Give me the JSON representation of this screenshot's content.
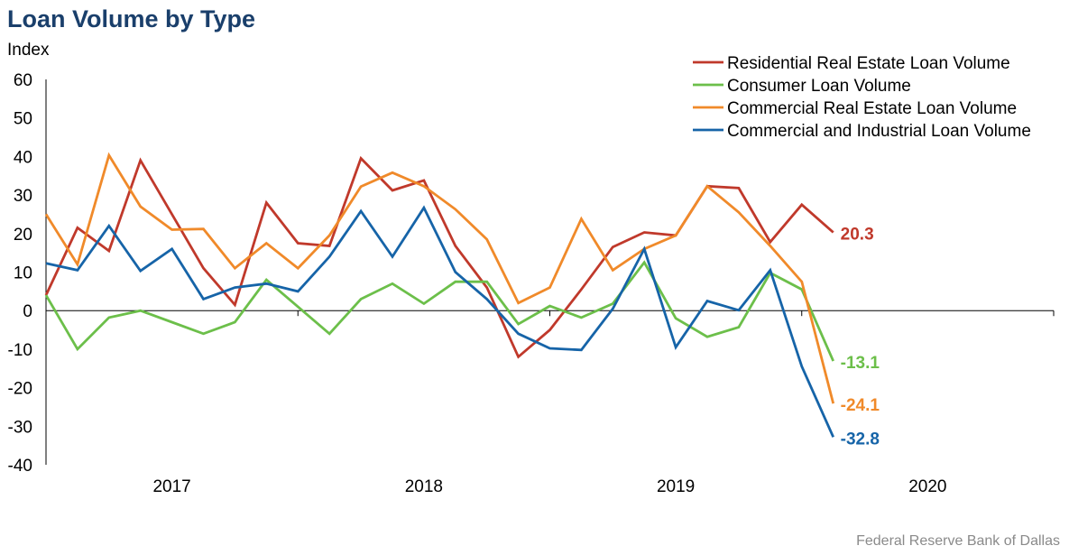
{
  "header": {
    "title": "Loan Volume by Type"
  },
  "footer": {
    "source": "Federal Reserve Bank of Dallas"
  },
  "colors": {
    "residential": "#c0392b",
    "consumer": "#6cbf4a",
    "commercial_re": "#f08a2a",
    "commercial_industrial": "#1664a8"
  },
  "chart_data": {
    "type": "line",
    "title": "Loan Volume by Type",
    "ylabel": "Index",
    "xlabel": "",
    "ylim": [
      -40,
      60
    ],
    "yticks": [
      60,
      50,
      40,
      30,
      20,
      10,
      0,
      -10,
      -20,
      -30,
      -40
    ],
    "xlim": [
      2016.5,
      2020.5
    ],
    "xticks": [
      2017,
      2018,
      2019,
      2020
    ],
    "xtick_labels": [
      "2017",
      "2018",
      "2019",
      "2020"
    ],
    "grid": false,
    "legend": "top-right",
    "x": [
      2016.5,
      2016.625,
      2016.75,
      2016.875,
      2017.0,
      2017.125,
      2017.25,
      2017.375,
      2017.5,
      2017.625,
      2017.75,
      2017.875,
      2018.0,
      2018.125,
      2018.25,
      2018.375,
      2018.5,
      2018.625,
      2018.75,
      2018.875,
      2019.0,
      2019.125,
      2019.25,
      2019.375,
      2019.5,
      2019.625
    ],
    "series": [
      {
        "name": "Residential Real Estate Loan Volume",
        "color": "#c0392b",
        "values": [
          4,
          21.5,
          15.5,
          39,
          25,
          11,
          1.5,
          28,
          17.5,
          16.8,
          39.5,
          31.2,
          33.8,
          16.8,
          6,
          -12,
          -5,
          5.5,
          16.5,
          20.3,
          19.5,
          32.3,
          31.8,
          17.8,
          27.5,
          20.3
        ],
        "end_label": "20.3"
      },
      {
        "name": "Consumer Loan Volume",
        "color": "#6cbf4a",
        "values": [
          4,
          -10,
          -1.8,
          0,
          -3,
          -6,
          -3,
          8,
          1,
          -6,
          3,
          7,
          1.8,
          7.5,
          7.5,
          -3.5,
          1.2,
          -1.8,
          1.8,
          12.5,
          -2,
          -6.8,
          -4.3,
          9.8,
          5.5,
          -13.1
        ],
        "end_label": "-13.1"
      },
      {
        "name": "Commercial Real Estate Loan Volume",
        "color": "#f08a2a",
        "values": [
          25,
          12,
          40.3,
          27,
          21,
          21.2,
          11,
          17.5,
          11,
          19.5,
          32.2,
          35.8,
          32.3,
          26.3,
          18.5,
          2,
          6,
          23.8,
          10.5,
          16,
          19.5,
          32.3,
          25.5,
          16.8,
          7.5,
          -24.1
        ],
        "end_label": "-24.1"
      },
      {
        "name": "Commercial and Industrial Loan Volume",
        "color": "#1664a8",
        "values": [
          12.3,
          10.5,
          22,
          10.3,
          16,
          3,
          6,
          7,
          5,
          14,
          25.8,
          14,
          26.7,
          10,
          3,
          -6,
          -9.8,
          -10.2,
          0.5,
          16,
          -9.5,
          2.5,
          0.1,
          10.5,
          -14.5,
          -32.8
        ],
        "end_label": "-32.8"
      }
    ]
  }
}
